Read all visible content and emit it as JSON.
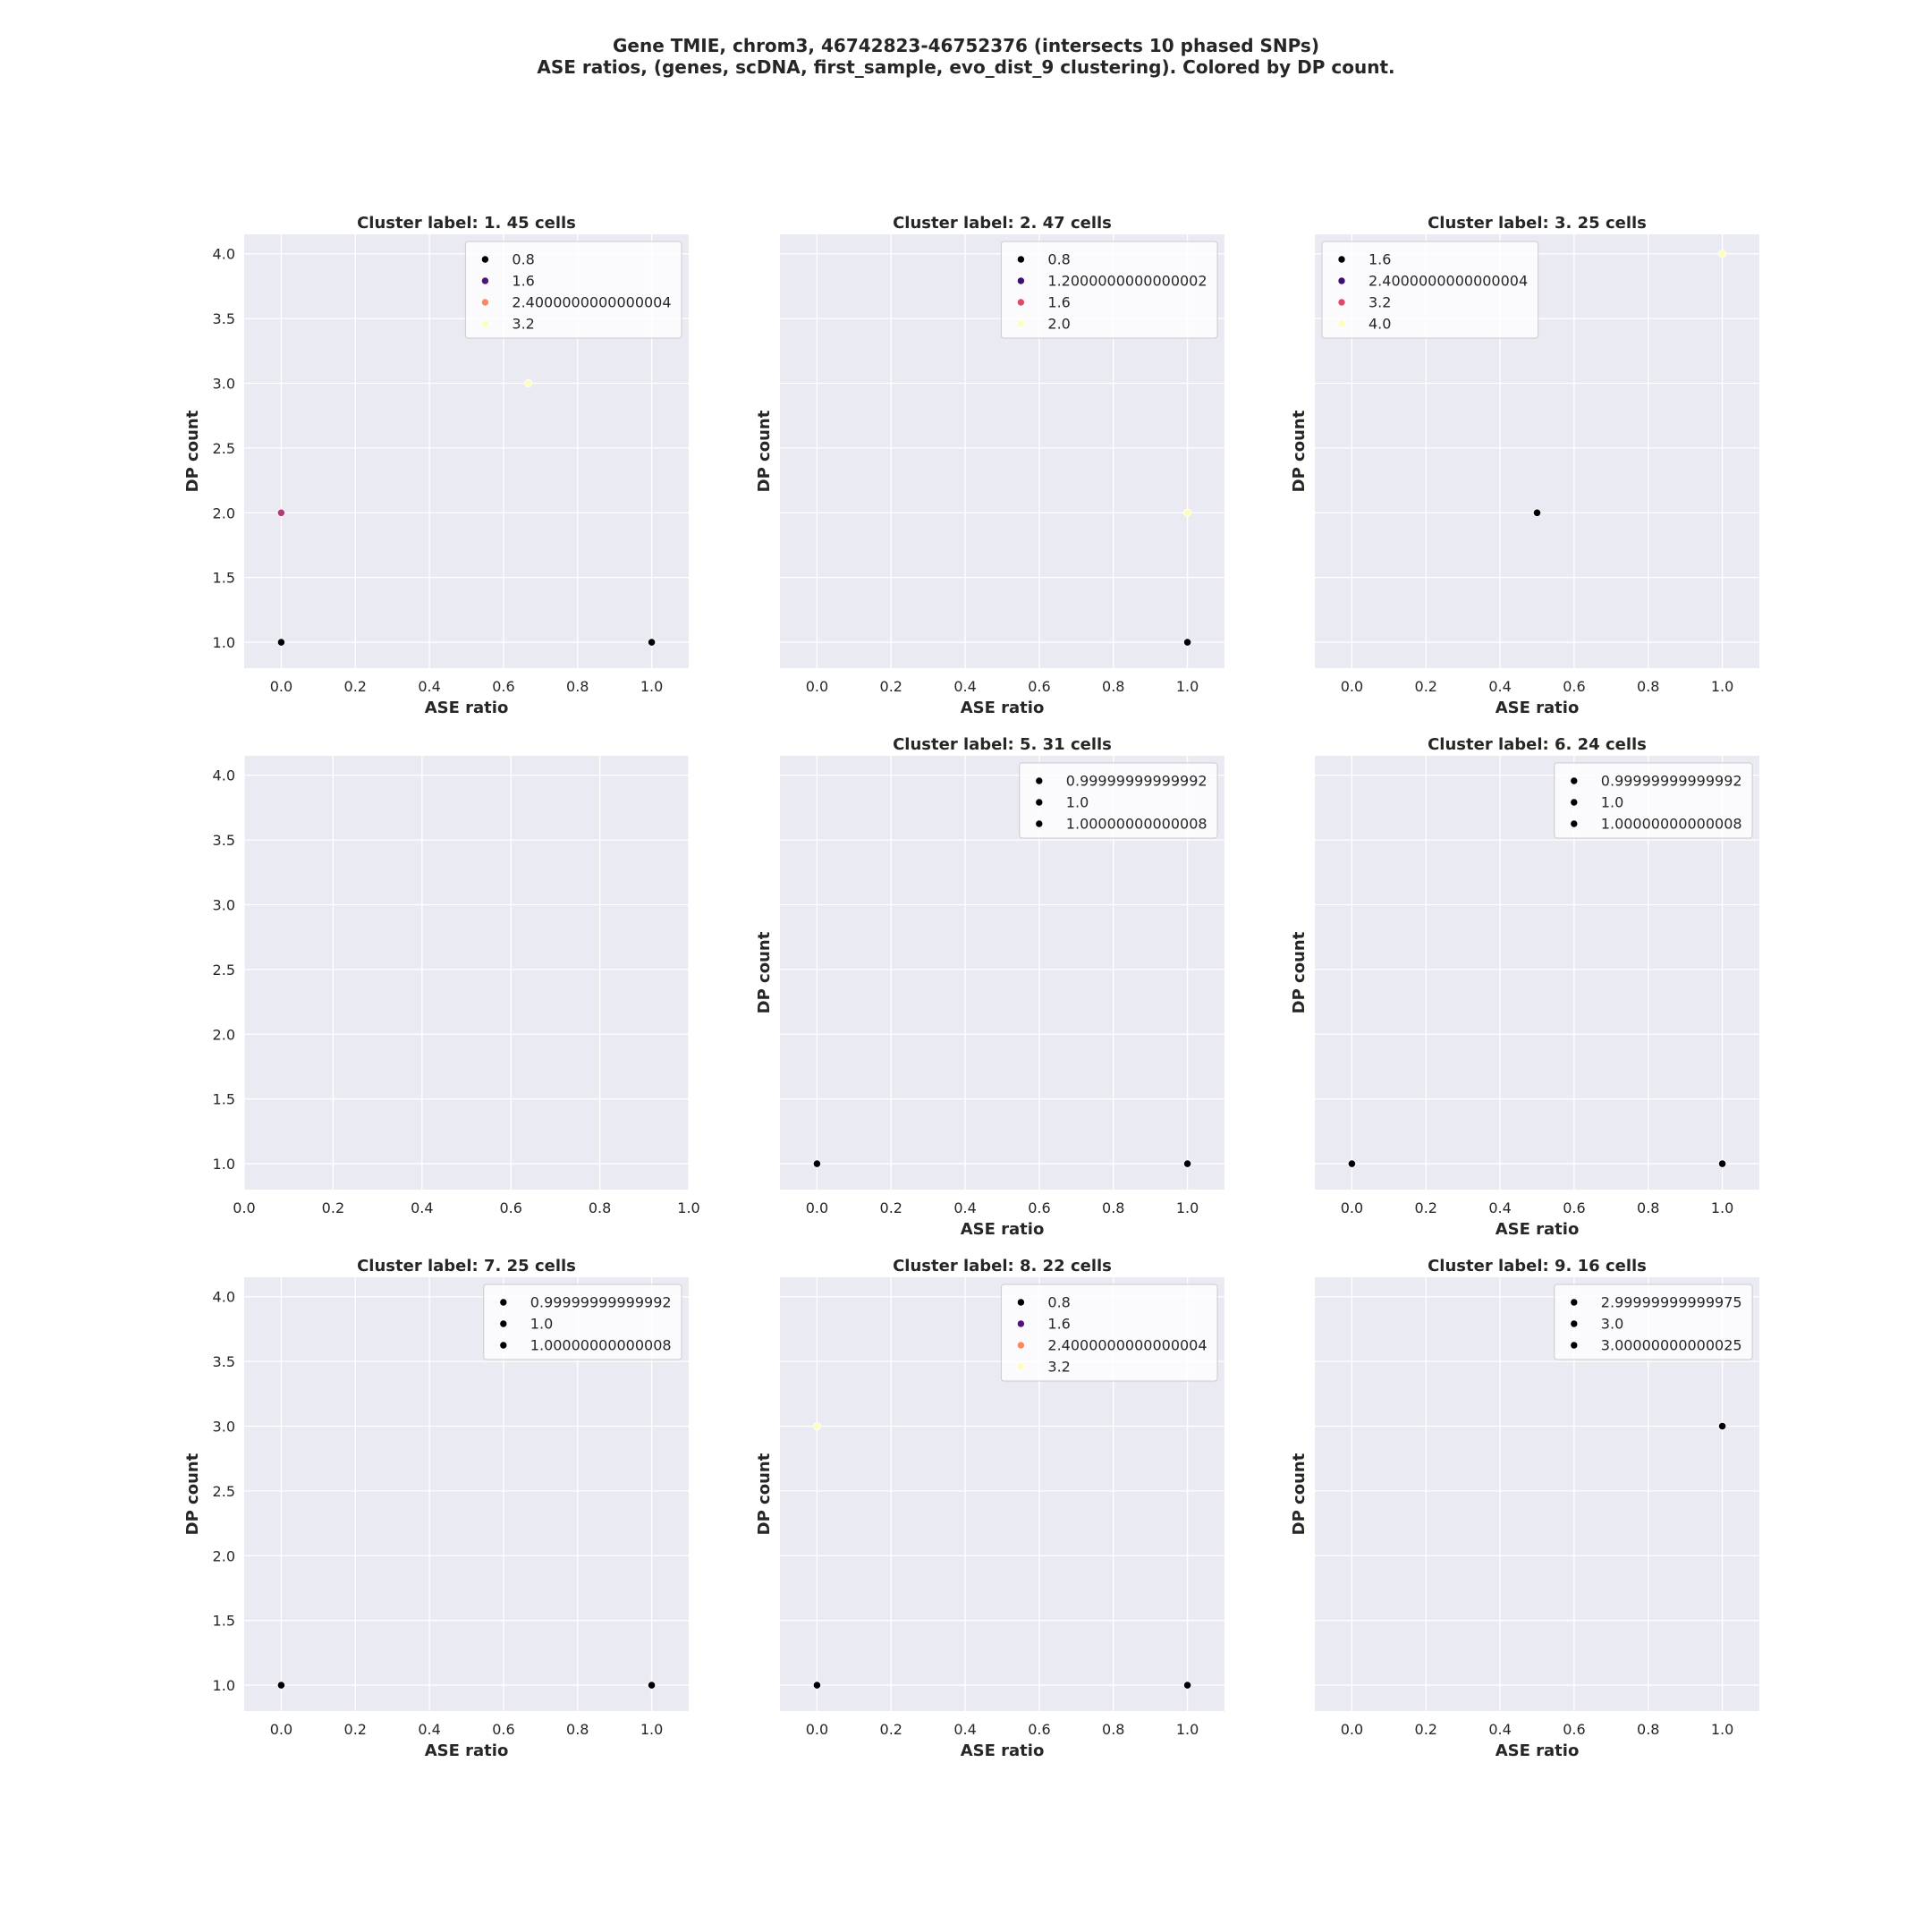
{
  "suptitle": {
    "line1": "Gene TMIE, chrom3, 46742823-46752376 (intersects 10 phased SNPs)",
    "line2": "ASE ratios, (genes, scDNA, first_sample, evo_dist_9 clustering). Colored by DP count."
  },
  "colors": {
    "panel_bg": "#eaeaf2",
    "grid": "#ffffff",
    "text": "#262626"
  },
  "chart_data": [
    {
      "type": "scatter",
      "title": "Cluster label: 1. 45 cells",
      "xlabel": "ASE ratio",
      "ylabel": "DP count",
      "xlim": [
        -0.1,
        1.1
      ],
      "ylim": [
        0.8,
        4.15
      ],
      "xticks": [
        "0.0",
        "0.2",
        "0.4",
        "0.6",
        "0.8",
        "1.0"
      ],
      "yticks": [
        "1.0",
        "1.5",
        "2.0",
        "2.5",
        "3.0",
        "3.5",
        "4.0"
      ],
      "show_yticks": true,
      "legend": [
        {
          "label": "0.8",
          "color": "#000004"
        },
        {
          "label": "1.6",
          "color": "#51127c"
        },
        {
          "label": "2.4000000000000004",
          "color": "#fb8861"
        },
        {
          "label": "3.2",
          "color": "#fcfdbf"
        }
      ],
      "points": [
        {
          "x": 0.0,
          "y": 1.0,
          "color": "#000004"
        },
        {
          "x": 1.0,
          "y": 1.0,
          "color": "#000004"
        },
        {
          "x": 0.0,
          "y": 2.0,
          "color": "#b73779"
        },
        {
          "x": 0.667,
          "y": 3.0,
          "color": "#fcfdbf"
        }
      ]
    },
    {
      "type": "scatter",
      "title": "Cluster label: 2. 47 cells",
      "xlabel": "ASE ratio",
      "ylabel": "DP count",
      "xlim": [
        -0.1,
        1.1
      ],
      "ylim": [
        0.8,
        4.15
      ],
      "xticks": [
        "0.0",
        "0.2",
        "0.4",
        "0.6",
        "0.8",
        "1.0"
      ],
      "yticks": [
        "1.0",
        "1.5",
        "2.0",
        "2.5",
        "3.0",
        "3.5",
        "4.0"
      ],
      "show_yticks": false,
      "legend": [
        {
          "label": "0.8",
          "color": "#000004"
        },
        {
          "label": "1.2000000000000002",
          "color": "#3b0f70"
        },
        {
          "label": "1.6",
          "color": "#de4968"
        },
        {
          "label": "2.0",
          "color": "#fcfdbf"
        }
      ],
      "points": [
        {
          "x": 1.0,
          "y": 1.0,
          "color": "#000004"
        },
        {
          "x": 1.0,
          "y": 2.0,
          "color": "#fcfdbf"
        }
      ]
    },
    {
      "type": "scatter",
      "title": "Cluster label: 3. 25 cells",
      "xlabel": "ASE ratio",
      "ylabel": "DP count",
      "xlim": [
        -0.1,
        1.1
      ],
      "ylim": [
        0.8,
        4.15
      ],
      "xticks": [
        "0.0",
        "0.2",
        "0.4",
        "0.6",
        "0.8",
        "1.0"
      ],
      "yticks": [
        "1.0",
        "1.5",
        "2.0",
        "2.5",
        "3.0",
        "3.5",
        "4.0"
      ],
      "show_yticks": false,
      "legend": [
        {
          "label": "1.6",
          "color": "#000004"
        },
        {
          "label": "2.4000000000000004",
          "color": "#3b0f70"
        },
        {
          "label": "3.2",
          "color": "#de4968"
        },
        {
          "label": "4.0",
          "color": "#fcfdbf"
        }
      ],
      "points": [
        {
          "x": 0.5,
          "y": 2.0,
          "color": "#000004"
        },
        {
          "x": 1.0,
          "y": 4.0,
          "color": "#fcfdbf"
        }
      ]
    },
    {
      "type": "scatter",
      "title": "",
      "xlabel": "",
      "ylabel": "",
      "xlim": [
        0.0,
        1.0
      ],
      "ylim": [
        0.8,
        4.15
      ],
      "xticks": [
        "0.0",
        "0.2",
        "0.4",
        "0.6",
        "0.8",
        "1.0"
      ],
      "yticks": [
        "1.0",
        "1.5",
        "2.0",
        "2.5",
        "3.0",
        "3.5",
        "4.0"
      ],
      "show_yticks": true,
      "legend": [],
      "points": []
    },
    {
      "type": "scatter",
      "title": "Cluster label: 5. 31 cells",
      "xlabel": "ASE ratio",
      "ylabel": "DP count",
      "xlim": [
        -0.1,
        1.1
      ],
      "ylim": [
        0.8,
        4.15
      ],
      "xticks": [
        "0.0",
        "0.2",
        "0.4",
        "0.6",
        "0.8",
        "1.0"
      ],
      "yticks": [
        "1.0",
        "1.5",
        "2.0",
        "2.5",
        "3.0",
        "3.5",
        "4.0"
      ],
      "show_yticks": false,
      "legend": [
        {
          "label": "0.99999999999992",
          "color": "#000004"
        },
        {
          "label": "1.0",
          "color": "#000004"
        },
        {
          "label": "1.00000000000008",
          "color": "#000004"
        }
      ],
      "points": [
        {
          "x": 0.0,
          "y": 1.0,
          "color": "#000004"
        },
        {
          "x": 1.0,
          "y": 1.0,
          "color": "#000004"
        }
      ]
    },
    {
      "type": "scatter",
      "title": "Cluster label: 6. 24 cells",
      "xlabel": "ASE ratio",
      "ylabel": "DP count",
      "xlim": [
        -0.1,
        1.1
      ],
      "ylim": [
        0.8,
        4.15
      ],
      "xticks": [
        "0.0",
        "0.2",
        "0.4",
        "0.6",
        "0.8",
        "1.0"
      ],
      "yticks": [
        "1.0",
        "1.5",
        "2.0",
        "2.5",
        "3.0",
        "3.5",
        "4.0"
      ],
      "show_yticks": false,
      "legend": [
        {
          "label": "0.99999999999992",
          "color": "#000004"
        },
        {
          "label": "1.0",
          "color": "#000004"
        },
        {
          "label": "1.00000000000008",
          "color": "#000004"
        }
      ],
      "points": [
        {
          "x": 0.0,
          "y": 1.0,
          "color": "#000004"
        },
        {
          "x": 1.0,
          "y": 1.0,
          "color": "#000004"
        }
      ]
    },
    {
      "type": "scatter",
      "title": "Cluster label: 7. 25 cells",
      "xlabel": "ASE ratio",
      "ylabel": "DP count",
      "xlim": [
        -0.1,
        1.1
      ],
      "ylim": [
        0.8,
        4.15
      ],
      "xticks": [
        "0.0",
        "0.2",
        "0.4",
        "0.6",
        "0.8",
        "1.0"
      ],
      "yticks": [
        "1.0",
        "1.5",
        "2.0",
        "2.5",
        "3.0",
        "3.5",
        "4.0"
      ],
      "show_yticks": true,
      "legend": [
        {
          "label": "0.99999999999992",
          "color": "#000004"
        },
        {
          "label": "1.0",
          "color": "#000004"
        },
        {
          "label": "1.00000000000008",
          "color": "#000004"
        }
      ],
      "points": [
        {
          "x": 0.0,
          "y": 1.0,
          "color": "#000004"
        },
        {
          "x": 1.0,
          "y": 1.0,
          "color": "#000004"
        }
      ]
    },
    {
      "type": "scatter",
      "title": "Cluster label: 8. 22 cells",
      "xlabel": "ASE ratio",
      "ylabel": "DP count",
      "xlim": [
        -0.1,
        1.1
      ],
      "ylim": [
        0.8,
        4.15
      ],
      "xticks": [
        "0.0",
        "0.2",
        "0.4",
        "0.6",
        "0.8",
        "1.0"
      ],
      "yticks": [
        "1.0",
        "1.5",
        "2.0",
        "2.5",
        "3.0",
        "3.5",
        "4.0"
      ],
      "show_yticks": false,
      "legend": [
        {
          "label": "0.8",
          "color": "#000004"
        },
        {
          "label": "1.6",
          "color": "#51127c"
        },
        {
          "label": "2.4000000000000004",
          "color": "#fb8861"
        },
        {
          "label": "3.2",
          "color": "#fcfdbf"
        }
      ],
      "points": [
        {
          "x": 0.0,
          "y": 1.0,
          "color": "#000004"
        },
        {
          "x": 1.0,
          "y": 1.0,
          "color": "#000004"
        },
        {
          "x": 0.0,
          "y": 3.0,
          "color": "#fcfdbf"
        }
      ]
    },
    {
      "type": "scatter",
      "title": "Cluster label: 9. 16 cells",
      "xlabel": "ASE ratio",
      "ylabel": "DP count",
      "xlim": [
        -0.1,
        1.1
      ],
      "ylim": [
        0.8,
        4.15
      ],
      "xticks": [
        "0.0",
        "0.2",
        "0.4",
        "0.6",
        "0.8",
        "1.0"
      ],
      "yticks": [
        "1.0",
        "1.5",
        "2.0",
        "2.5",
        "3.0",
        "3.5",
        "4.0"
      ],
      "show_yticks": false,
      "legend": [
        {
          "label": "2.99999999999975",
          "color": "#000004"
        },
        {
          "label": "3.0",
          "color": "#000004"
        },
        {
          "label": "3.00000000000025",
          "color": "#000004"
        }
      ],
      "points": [
        {
          "x": 1.0,
          "y": 3.0,
          "color": "#000004"
        }
      ]
    }
  ]
}
